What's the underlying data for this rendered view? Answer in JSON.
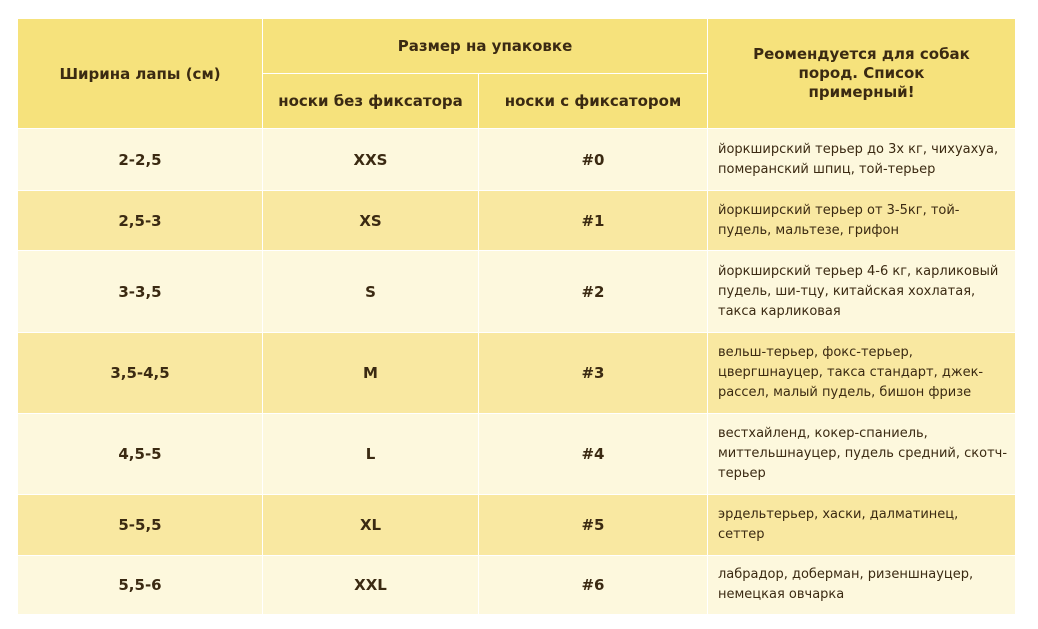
{
  "table": {
    "header": {
      "paw_width": "Ширина лапы (см)",
      "package_size": "Размер на упаковке",
      "without_clasp": "носки без фиксатора",
      "with_clasp": "носки с фиксатором",
      "recommended": "Реомендуется для собак пород. Список примерный!"
    },
    "rows": [
      [
        "2-2,5",
        "XXS",
        "#0",
        "йоркширский терьер до 3х кг, чихуахуа, померанский шпиц, той-терьер"
      ],
      [
        "2,5-3",
        "XS",
        "#1",
        "йоркширский терьер от 3-5кг, той-пудель, мальтезе, грифон"
      ],
      [
        "3-3,5",
        "S",
        "#2",
        "йоркширский терьер 4-6 кг, карликовый пудель, ши-тцу, китайская хохлатая, такса карликовая"
      ],
      [
        "3,5-4,5",
        "M",
        "#3",
        "вельш-терьер, фокс-терьер, цвергшнауцер, такса стандарт, джек-рассел, малый пудель, бишон фризе"
      ],
      [
        "4,5-5",
        "L",
        "#4",
        "вестхайленд, кокер-спаниель, миттельшнауцер, пудель средний, скотч-терьер"
      ],
      [
        "5-5,5",
        "XL",
        "#5",
        "эрдельтерьер, хаски, далматинец, сеттер"
      ],
      [
        "5,5-6",
        "XXL",
        "#6",
        "лабрадор, доберман, ризеншнауцер, немецкая овчарка"
      ]
    ]
  }
}
